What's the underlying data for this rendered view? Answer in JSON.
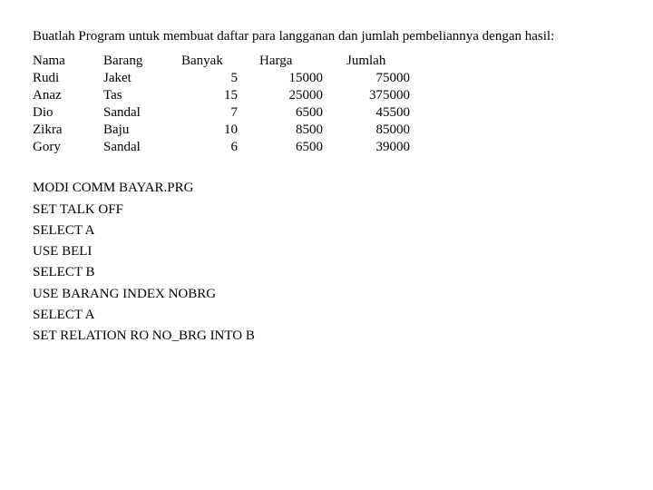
{
  "intro": "Buatlah Program untuk membuat daftar para langganan dan jumlah pembeliannya dengan hasil:",
  "table": {
    "headers": {
      "nama": "Nama",
      "barang": "Barang",
      "banyak": "Banyak",
      "harga": "Harga",
      "jumlah": "Jumlah"
    },
    "rows": [
      {
        "nama": "Rudi",
        "barang": "Jaket",
        "banyak": "5",
        "harga": "15000",
        "jumlah": "75000"
      },
      {
        "nama": "Anaz",
        "barang": "Tas",
        "banyak": "15",
        "harga": "25000",
        "jumlah": "375000"
      },
      {
        "nama": "Dio",
        "barang": "Sandal",
        "banyak": "7",
        "harga": "6500",
        "jumlah": "45500"
      },
      {
        "nama": "Zikra",
        "barang": "Baju",
        "banyak": "10",
        "harga": "8500",
        "jumlah": "85000"
      },
      {
        "nama": "Gory",
        "barang": "Sandal",
        "banyak": "6",
        "harga": "6500",
        "jumlah": "39000"
      }
    ]
  },
  "code": [
    "MODI COMM BAYAR.PRG",
    "SET TALK OFF",
    "SELECT A",
    "USE BELI",
    "SELECT B",
    "USE BARANG INDEX NOBRG",
    "SELECT A",
    "SET RELATION RO NO_BRG INTO B"
  ]
}
